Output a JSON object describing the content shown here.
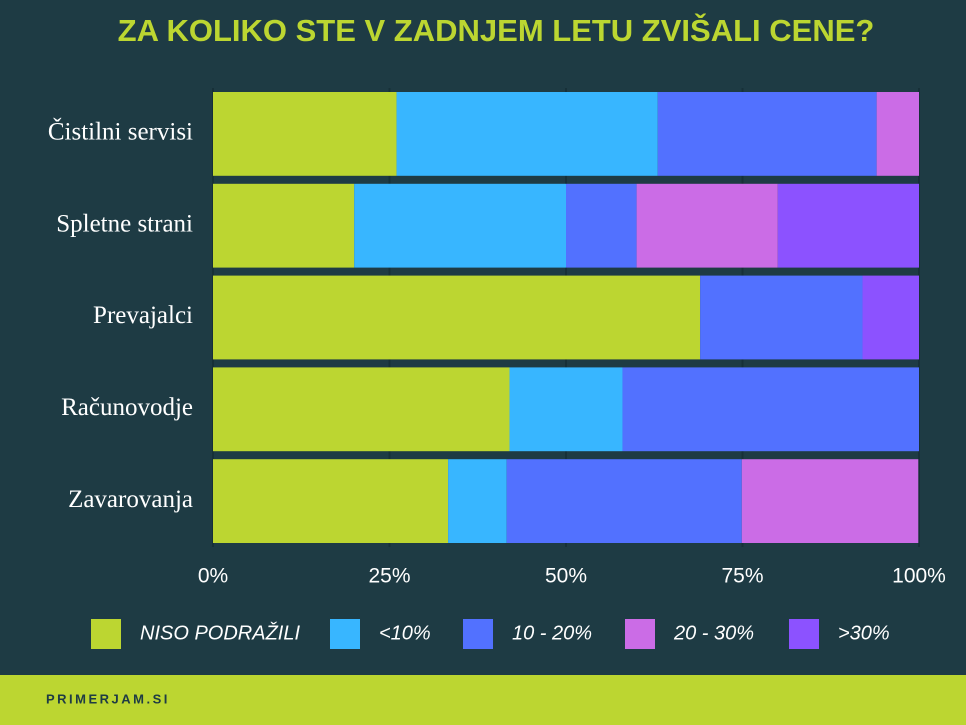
{
  "chart_data": {
    "type": "stacked-bar-horizontal",
    "title": "ZA KOLIKO STE V ZADNJEM LETU ZVIŠALI CENE?",
    "categories": [
      "Čistilni servisi",
      "Spletne strani",
      "Prevajalci",
      "Računovodje",
      "Zavarovanja"
    ],
    "series": [
      {
        "name": "NISO PODRAŽILI",
        "color": "#bcd631",
        "values": [
          26,
          20,
          69,
          42,
          33.3
        ]
      },
      {
        "name": "<10%",
        "color": "#38b6ff",
        "values": [
          37,
          30,
          0,
          16,
          8.3
        ]
      },
      {
        "name": "10 - 20%",
        "color": "#5271ff",
        "values": [
          31,
          10,
          23,
          42,
          33.3
        ]
      },
      {
        "name": "20 - 30%",
        "color": "#cb6ce6",
        "values": [
          6,
          20,
          0,
          0,
          25
        ]
      },
      {
        "name": ">30%",
        "color": "#8c52ff",
        "values": [
          0,
          20,
          8,
          0,
          0
        ]
      }
    ],
    "xlim": [
      0,
      100
    ],
    "xticks": [
      {
        "value": 0,
        "label": "0%"
      },
      {
        "value": 25,
        "label": "25%"
      },
      {
        "value": 50,
        "label": "50%"
      },
      {
        "value": 75,
        "label": "75%"
      },
      {
        "value": 100,
        "label": "100%"
      }
    ],
    "grid": true
  },
  "footer": "PRIMERJAM.SI"
}
